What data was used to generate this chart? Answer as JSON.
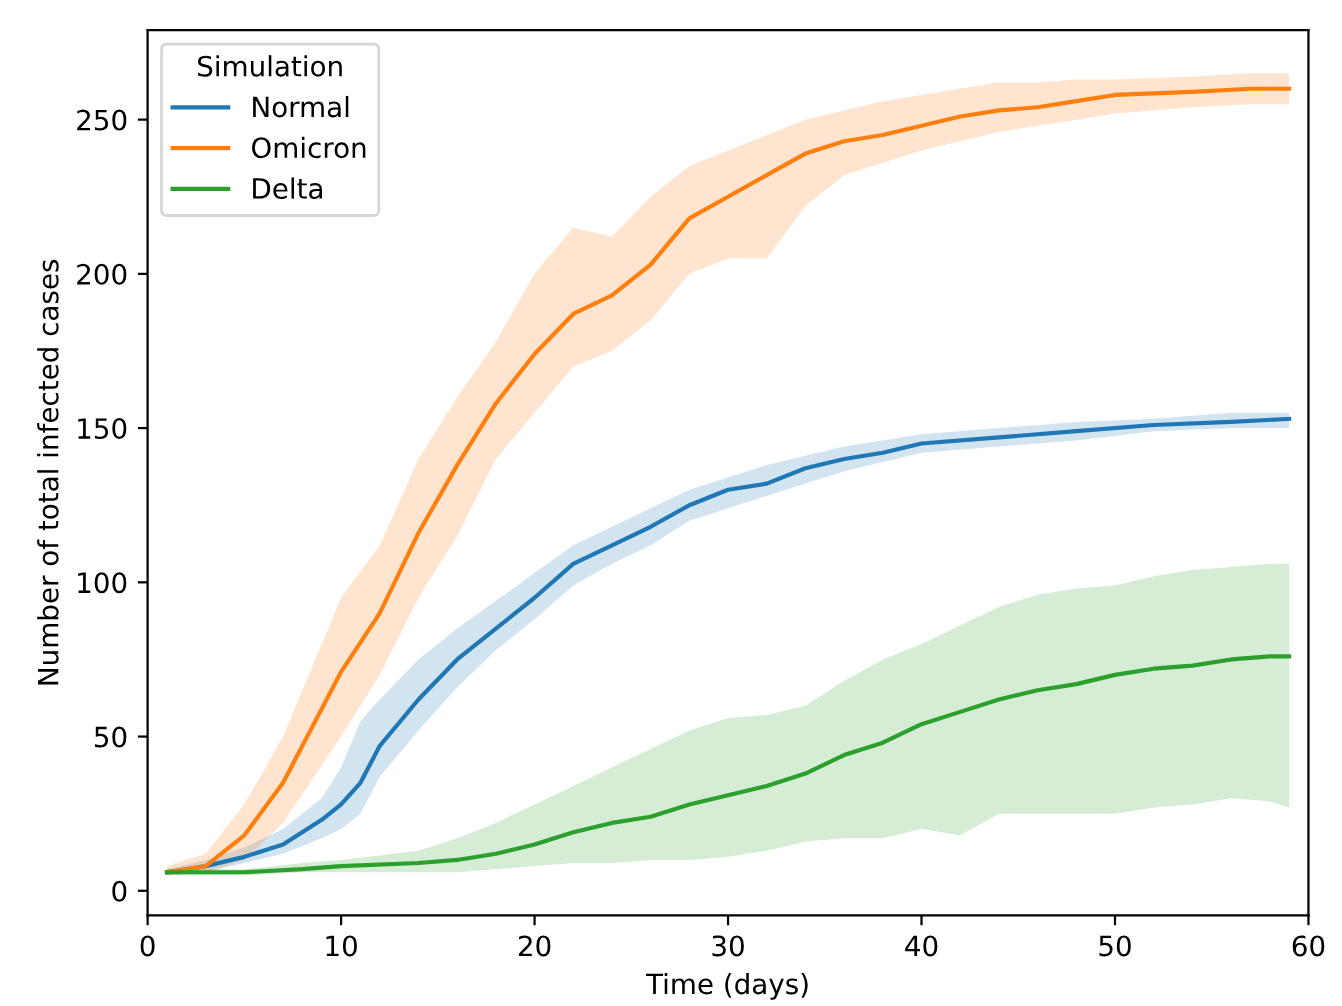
{
  "chart_data": {
    "type": "line",
    "xlabel": "Time (days)",
    "ylabel": "Number of total infected cases",
    "legend_title": "Simulation",
    "legend": "top left",
    "grid": false,
    "marker": "none",
    "line_style": "solid",
    "xlim": [
      0,
      60
    ],
    "xticks": [
      0,
      10,
      20,
      30,
      40,
      50,
      60
    ],
    "ylim": [
      -8,
      279
    ],
    "yticks": [
      0,
      50,
      100,
      150,
      200,
      250
    ],
    "series": [
      {
        "name": "Normal",
        "color": "#1f77b4",
        "x": [
          1,
          3,
          5,
          7,
          9,
          10,
          11,
          12,
          14,
          16,
          18,
          20,
          22,
          24,
          26,
          28,
          30,
          32,
          34,
          36,
          38,
          40,
          44,
          48,
          52,
          56,
          59
        ],
        "values": [
          6,
          8,
          11,
          15,
          23,
          28,
          35,
          47,
          62,
          75,
          85,
          95,
          106,
          112,
          118,
          125,
          130,
          132,
          137,
          140,
          142,
          145,
          147,
          149,
          151,
          152,
          153
        ],
        "lower": [
          5,
          6,
          9,
          12,
          17,
          20,
          25,
          37,
          52,
          66,
          78,
          88,
          99,
          106,
          112,
          120,
          124,
          128,
          132,
          136,
          139,
          142,
          144,
          146,
          149,
          150,
          150
        ],
        "upper": [
          7,
          10,
          14,
          20,
          30,
          40,
          55,
          62,
          75,
          85,
          94,
          103,
          112,
          118,
          124,
          130,
          134,
          138,
          141,
          144,
          146,
          148,
          150,
          152,
          153,
          155,
          155
        ]
      },
      {
        "name": "Omicron",
        "color": "#ff7f0e",
        "x": [
          1,
          3,
          5,
          7,
          10,
          12,
          14,
          16,
          18,
          20,
          22,
          24,
          26,
          28,
          30,
          32,
          34,
          36,
          38,
          40,
          42,
          44,
          46,
          48,
          50,
          54,
          57,
          59
        ],
        "values": [
          6,
          8,
          18,
          35,
          71,
          90,
          116,
          138,
          158,
          174,
          187,
          193,
          203,
          218,
          225,
          232,
          239,
          243,
          245,
          248,
          251,
          253,
          254,
          256,
          258,
          259,
          260,
          260
        ],
        "lower": [
          5,
          6,
          10,
          22,
          50,
          70,
          95,
          115,
          140,
          155,
          170,
          175,
          185,
          200,
          205,
          205,
          222,
          232,
          236,
          240,
          243,
          246,
          248,
          250,
          252,
          254,
          255,
          255
        ],
        "upper": [
          8,
          12,
          28,
          50,
          95,
          112,
          140,
          160,
          178,
          200,
          215,
          212,
          225,
          235,
          240,
          245,
          250,
          253,
          256,
          258,
          260,
          262,
          262,
          263,
          263,
          264,
          265,
          265
        ]
      },
      {
        "name": "Delta",
        "color": "#2ca02c",
        "x": [
          1,
          5,
          8,
          10,
          14,
          16,
          18,
          20,
          22,
          24,
          26,
          28,
          30,
          32,
          34,
          36,
          38,
          40,
          42,
          44,
          46,
          48,
          50,
          52,
          54,
          56,
          58,
          59
        ],
        "values": [
          6,
          6,
          7,
          8,
          9,
          10,
          12,
          15,
          19,
          22,
          24,
          28,
          31,
          34,
          38,
          44,
          48,
          54,
          58,
          62,
          65,
          67,
          70,
          72,
          73,
          75,
          76,
          76
        ],
        "lower": [
          5,
          5,
          6,
          6,
          6,
          6,
          7,
          8,
          9,
          9,
          10,
          10,
          11,
          13,
          16,
          17,
          17,
          20,
          18,
          25,
          25,
          25,
          25,
          27,
          28,
          30,
          29,
          27
        ],
        "upper": [
          7,
          7,
          9,
          10,
          13,
          17,
          22,
          28,
          34,
          40,
          46,
          52,
          56,
          57,
          60,
          68,
          75,
          80,
          86,
          92,
          96,
          98,
          99,
          102,
          104,
          105,
          106,
          106
        ]
      }
    ]
  }
}
